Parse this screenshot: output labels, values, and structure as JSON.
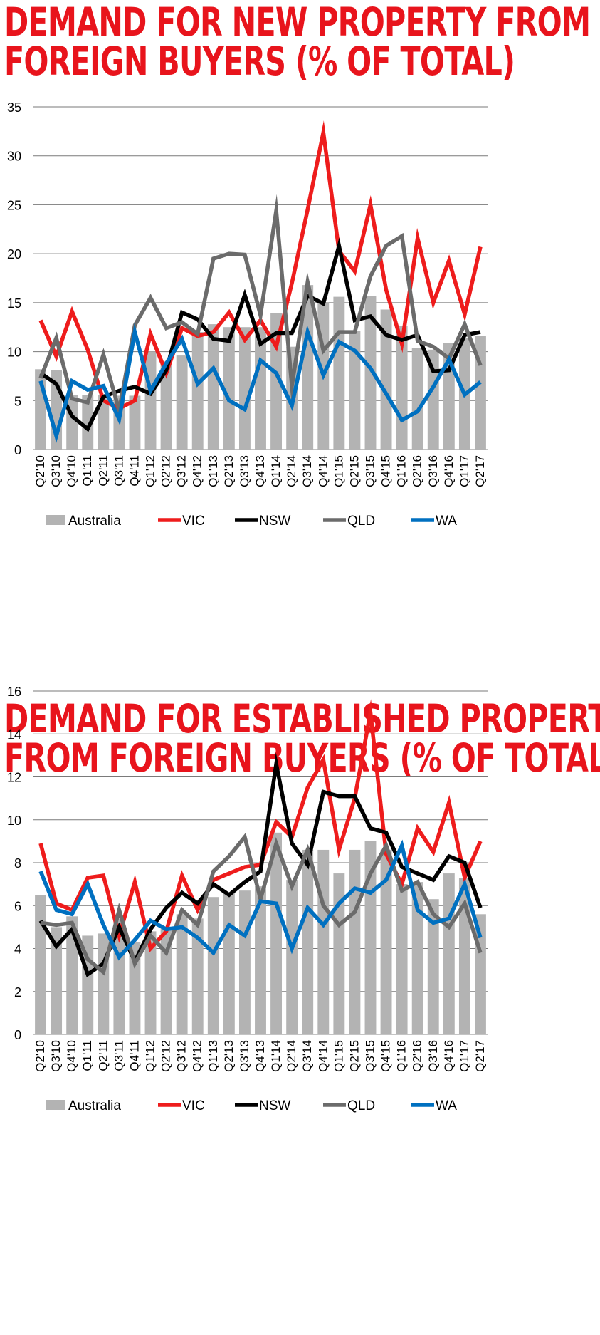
{
  "charts": [
    {
      "title_line1": "DEMAND FOR NEW PROPERTY FROM",
      "title_line2": "FOREIGN BUYERS (% OF TOTAL)",
      "chart_data": {
        "type": "bar",
        "categories": [
          "Q2'10",
          "Q3'10",
          "Q4'10",
          "Q1'11",
          "Q2'11",
          "Q3'11",
          "Q4'11",
          "Q1'12",
          "Q2'12",
          "Q3'12",
          "Q4'12",
          "Q1'13",
          "Q2'13",
          "Q3'13",
          "Q4'13",
          "Q1'14",
          "Q2'14",
          "Q3'14",
          "Q4'14",
          "Q1'15",
          "Q2'15",
          "Q3'15",
          "Q4'15",
          "Q1'16",
          "Q2'16",
          "Q3'16",
          "Q4'16",
          "Q1'17",
          "Q2'17"
        ],
        "ylim": [
          0,
          35
        ],
        "yticks": [
          0,
          5,
          10,
          15,
          20,
          25,
          30,
          35
        ],
        "grid": true,
        "legend": "bottom",
        "bar_series": {
          "name": "Australia",
          "color": "#b3b3b3",
          "values": [
            8.2,
            8.1,
            5.6,
            5.6,
            5.6,
            5.5,
            5.5,
            10.0,
            9.0,
            9.6,
            12.0,
            12.8,
            12.5,
            12.5,
            12.5,
            13.9,
            10.5,
            16.8,
            15.0,
            15.6,
            12.1,
            15.7,
            14.3,
            12.6,
            10.4,
            10.2,
            10.9,
            11.4,
            11.6
          ]
        },
        "series": [
          {
            "name": "VIC",
            "color": "#ee1c1c",
            "values": [
              13.2,
              9.5,
              14.1,
              10.2,
              5.0,
              4.2,
              5.0,
              11.8,
              7.8,
              12.4,
              11.6,
              12.0,
              14.0,
              11.2,
              13.2,
              10.5,
              17.0,
              24.5,
              32.4,
              20.3,
              18.2,
              25.0,
              16.3,
              10.8,
              21.6,
              15.0,
              19.3,
              13.8,
              20.7
            ]
          },
          {
            "name": "NSW",
            "color": "#000000",
            "values": [
              7.8,
              6.7,
              3.4,
              2.1,
              5.4,
              6.0,
              6.4,
              5.7,
              8.1,
              14.0,
              13.3,
              11.3,
              11.1,
              15.8,
              10.8,
              11.9,
              11.9,
              15.7,
              14.9,
              20.8,
              13.2,
              13.6,
              11.7,
              11.2,
              11.7,
              8.0,
              8.1,
              11.7,
              12.0
            ]
          },
          {
            "name": "QLD",
            "color": "#6b6b6b",
            "values": [
              7.3,
              11.4,
              5.2,
              4.8,
              9.7,
              4.0,
              12.7,
              15.5,
              12.4,
              13.0,
              11.8,
              19.5,
              20.0,
              19.9,
              13.7,
              24.4,
              6.5,
              17.1,
              10.1,
              12.0,
              12.0,
              17.7,
              20.8,
              21.8,
              11.1,
              10.5,
              9.3,
              12.8,
              8.6
            ]
          },
          {
            "name": "WA",
            "color": "#0070c0",
            "values": [
              7.0,
              1.4,
              7.0,
              6.1,
              6.5,
              3.1,
              12.0,
              6.0,
              8.8,
              11.3,
              6.7,
              8.3,
              5.0,
              4.1,
              9.1,
              7.8,
              4.5,
              12.0,
              7.6,
              11.0,
              10.1,
              8.3,
              5.7,
              3.0,
              3.9,
              6.4,
              9.2,
              5.6,
              6.9
            ]
          }
        ]
      }
    },
    {
      "title_line1": "DEMAND FOR ESTABLISHED PROPERTY",
      "title_line2": "FROM FOREIGN BUYERS (% OF TOTAL)",
      "chart_data": {
        "type": "bar",
        "categories": [
          "Q2'10",
          "Q3'10",
          "Q4'10",
          "Q1'11",
          "Q2'11",
          "Q3'11",
          "Q4'11",
          "Q1'12",
          "Q2'12",
          "Q3'12",
          "Q4'12",
          "Q1'13",
          "Q2'13",
          "Q3'13",
          "Q4'13",
          "Q1'14",
          "Q2'14",
          "Q3'14",
          "Q4'14",
          "Q1'15",
          "Q2'15",
          "Q3'15",
          "Q4'15",
          "Q1'16",
          "Q2'16",
          "Q3'16",
          "Q4'16",
          "Q1'17",
          "Q2'17"
        ],
        "ylim": [
          0,
          16
        ],
        "yticks": [
          0,
          2,
          4,
          6,
          8,
          10,
          12,
          14,
          16
        ],
        "grid": true,
        "legend": "bottom",
        "bar_series": {
          "name": "Australia",
          "color": "#b3b3b3",
          "values": [
            6.5,
            5.0,
            5.5,
            4.6,
            4.7,
            5.4,
            4.3,
            4.8,
            5.0,
            5.6,
            5.4,
            6.4,
            6.6,
            6.7,
            6.9,
            9.4,
            7.2,
            8.6,
            8.6,
            7.5,
            8.6,
            9.0,
            8.6,
            7.0,
            7.1,
            6.3,
            7.5,
            7.3,
            5.6
          ]
        },
        "series": [
          {
            "name": "VIC",
            "color": "#ee1c1c",
            "values": [
              8.9,
              6.1,
              5.8,
              7.3,
              7.4,
              4.6,
              7.1,
              4.0,
              4.8,
              7.4,
              5.8,
              7.2,
              7.5,
              7.8,
              7.9,
              9.9,
              9.2,
              11.5,
              12.8,
              8.6,
              11.0,
              15.0,
              8.4,
              7.0,
              9.6,
              8.5,
              10.8,
              7.3,
              9.0
            ]
          },
          {
            "name": "NSW",
            "color": "#000000",
            "values": [
              5.3,
              4.1,
              4.9,
              2.8,
              3.3,
              5.0,
              3.4,
              4.9,
              5.9,
              6.6,
              6.1,
              7.0,
              6.5,
              7.1,
              7.6,
              12.6,
              8.9,
              7.9,
              11.3,
              11.1,
              11.1,
              9.6,
              9.4,
              7.8,
              7.5,
              7.2,
              8.3,
              8.0,
              5.9
            ]
          },
          {
            "name": "QLD",
            "color": "#6b6b6b",
            "values": [
              5.2,
              5.1,
              5.2,
              3.5,
              2.9,
              5.8,
              3.3,
              4.6,
              3.8,
              5.8,
              5.1,
              7.6,
              8.3,
              9.2,
              6.3,
              8.9,
              6.9,
              8.6,
              6.0,
              5.1,
              5.7,
              7.5,
              8.8,
              6.7,
              7.1,
              5.6,
              5.0,
              6.1,
              3.8
            ]
          },
          {
            "name": "WA",
            "color": "#0070c0",
            "values": [
              7.6,
              5.8,
              5.6,
              7.0,
              5.1,
              3.6,
              4.4,
              5.3,
              4.9,
              5.0,
              4.5,
              3.8,
              5.1,
              4.6,
              6.2,
              6.1,
              4.0,
              5.9,
              5.1,
              6.1,
              6.8,
              6.6,
              7.2,
              8.8,
              5.8,
              5.2,
              5.4,
              7.0,
              4.5
            ]
          }
        ]
      }
    }
  ]
}
